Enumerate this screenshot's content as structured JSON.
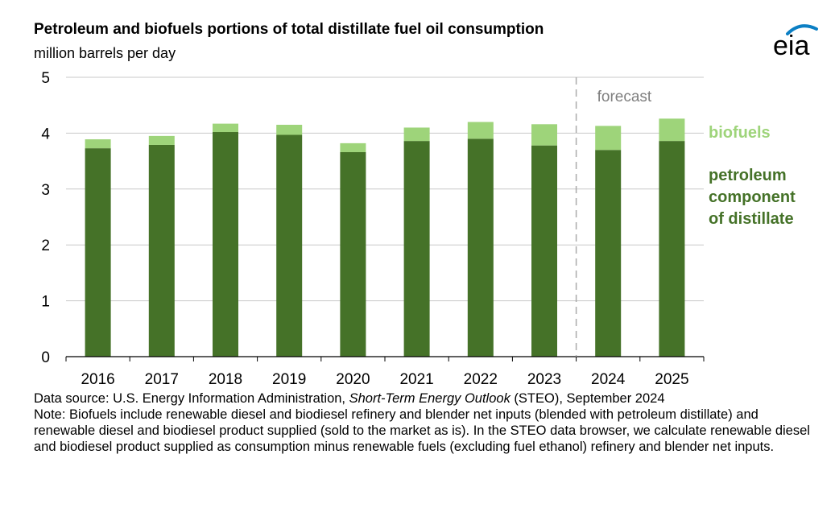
{
  "header": {
    "title": "Petroleum and biofuels portions of total distillate fuel oil consumption",
    "subtitle": "million barrels per day"
  },
  "logo": {
    "text": "eia",
    "color": "#0b7fc4"
  },
  "colors": {
    "petroleum": "#457228",
    "biofuels": "#9ed47a",
    "gridline": "#c8c8c8",
    "forecast_line": "#aaaaaa"
  },
  "chart_data": {
    "type": "bar",
    "stacked": true,
    "categories": [
      "2016",
      "2017",
      "2018",
      "2019",
      "2020",
      "2021",
      "2022",
      "2023",
      "2024",
      "2025"
    ],
    "series": [
      {
        "name": "petroleum component of distillate",
        "values": [
          3.73,
          3.79,
          4.02,
          3.97,
          3.66,
          3.86,
          3.9,
          3.78,
          3.7,
          3.86
        ]
      },
      {
        "name": "biofuels",
        "values": [
          0.16,
          0.16,
          0.15,
          0.18,
          0.16,
          0.24,
          0.3,
          0.38,
          0.43,
          0.4
        ]
      }
    ],
    "yticks": [
      "0",
      "1",
      "2",
      "3",
      "4",
      "5"
    ],
    "ylim": [
      0,
      5
    ],
    "grid": true,
    "forecast_label": "forecast",
    "forecast_start": "2024",
    "legend_labels": {
      "biofuels": "biofuels",
      "petroleum": [
        "petroleum",
        "component",
        "of distillate"
      ]
    }
  },
  "notes": {
    "source_prefix": "Data source: U.S. Energy Information Administration, ",
    "source_italic": "Short-Term Energy Outlook",
    "source_suffix": " (STEO), September 2024",
    "note": "Note: Biofuels include renewable diesel and biodiesel refinery and blender net inputs (blended with petroleum distillate) and renewable diesel and biodiesel product supplied (sold to the market as is). In the STEO data browser, we calculate renewable diesel and biodiesel product supplied as consumption minus renewable fuels (excluding fuel ethanol) refinery and blender net inputs."
  }
}
